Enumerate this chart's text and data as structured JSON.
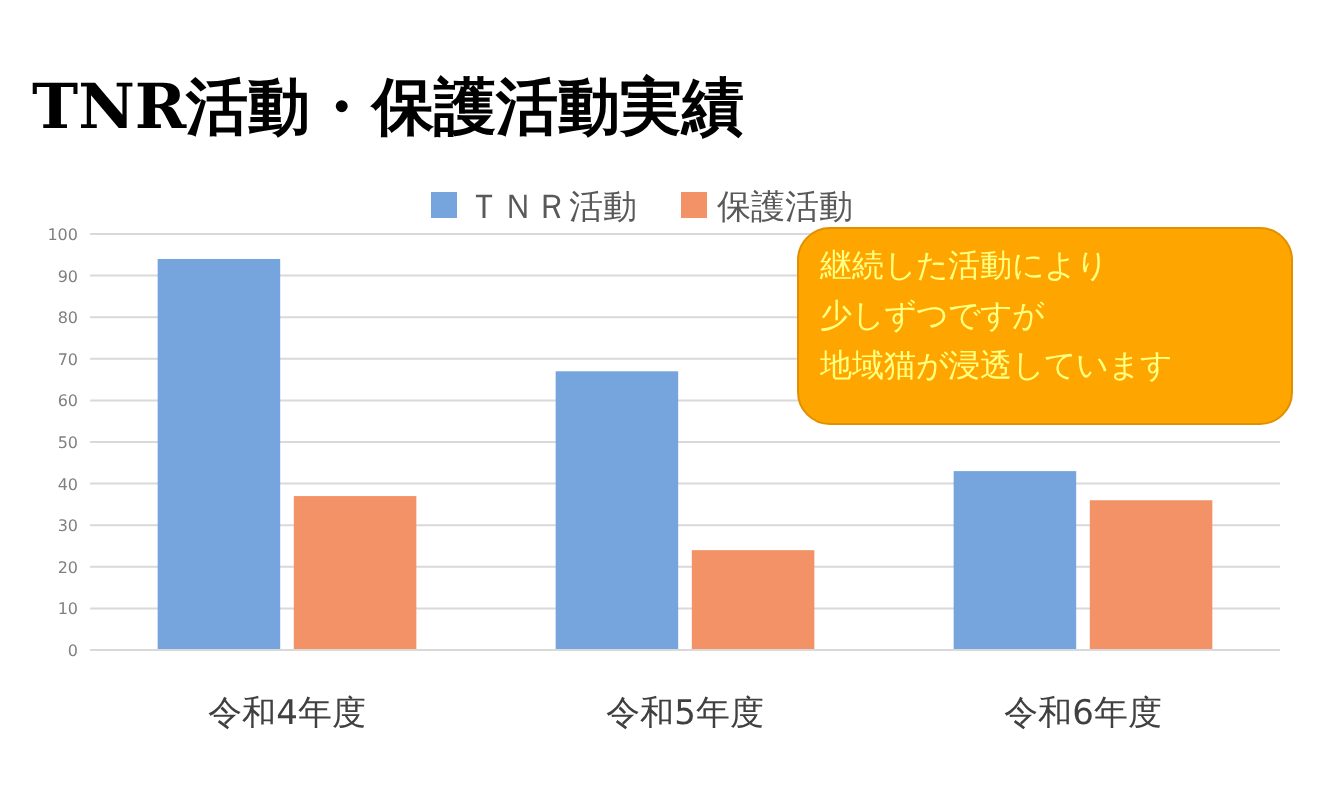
{
  "chart_data": {
    "type": "bar",
    "title": "TNR活動・保護活動実績",
    "categories": [
      "令和4年度",
      "令和5年度",
      "令和6年度"
    ],
    "series": [
      {
        "name": "ＴＮＲ活動",
        "color": "#76a5de",
        "values": [
          94,
          67,
          43
        ]
      },
      {
        "name": "保護活動",
        "color": "#f39267",
        "values": [
          37,
          24,
          36
        ]
      }
    ],
    "ylim": [
      0,
      100
    ],
    "yticks": [
      0,
      10,
      20,
      30,
      40,
      50,
      60,
      70,
      80,
      90,
      100
    ],
    "grid": "y",
    "legend": "top",
    "annotations": [
      "継続した活動により",
      "少しずつですが",
      "地域猫が浸透しています"
    ]
  }
}
